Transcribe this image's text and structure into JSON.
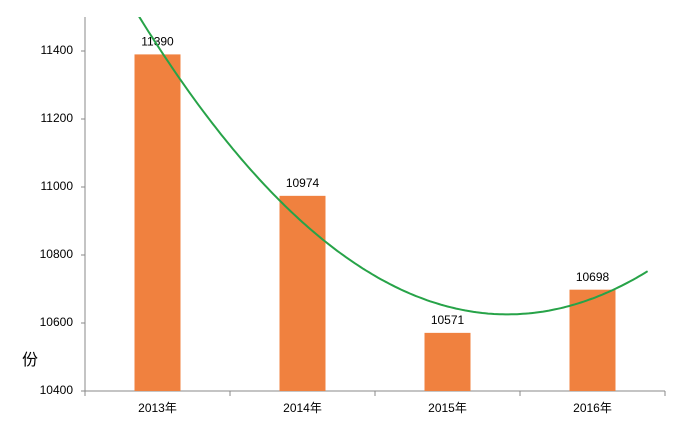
{
  "chart_data": {
    "type": "bar",
    "ylabel": "份",
    "categories": [
      "2013年",
      "2014年",
      "2015年",
      "2016年"
    ],
    "values": [
      11390,
      10974,
      10571,
      10698
    ],
    "color": "#f0813f",
    "ylim": [
      10400,
      11500
    ],
    "yticks": [
      10400,
      10600,
      10800,
      11000,
      11200,
      11400
    ],
    "trendline_order": 2,
    "trendline_color": "#27a348"
  }
}
